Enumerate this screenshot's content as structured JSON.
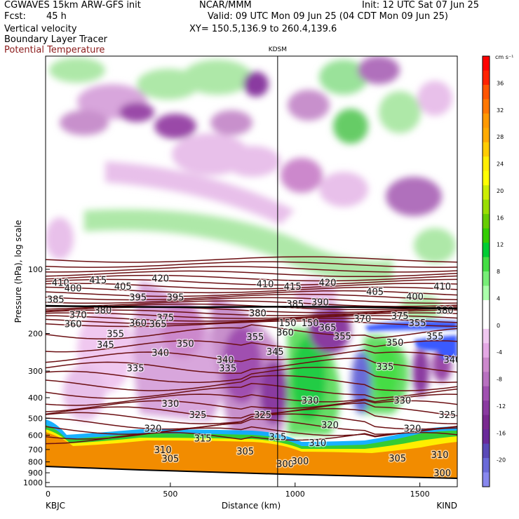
{
  "header": {
    "model": "CGWAVES 15km ARW-GFS init",
    "fcst_label": "Fcst:",
    "fcst_value": "45 h",
    "org": "NCAR/MMM",
    "init": "Init: 12 UTC Sat 07 Jun 25",
    "valid": "Valid: 09 UTC Mon 09 Jun 25 (04 CDT Mon 09 Jun 25)",
    "xy": "XY= 150.5,136.9 to 260.4,139.6",
    "field1": "Vertical velocity",
    "field2": "Boundary Layer Tracer",
    "field3": "Potential Temperature"
  },
  "colors": {
    "theta_contour": "#6b0f12",
    "terrain": "#f28c00",
    "field3_text": "#8b1a1a"
  },
  "chart_data": {
    "type": "heatmap",
    "title": "",
    "xlabel": "Distance (km)",
    "ylabel": "Pressure (hPa), log scale",
    "xlim": [
      0,
      1650
    ],
    "ylim": [
      1050,
      10
    ],
    "x_ticks": [
      0,
      500,
      1000,
      1500
    ],
    "y_ticks": [
      100,
      200,
      300,
      400,
      500,
      600,
      700,
      800,
      900,
      1000
    ],
    "y_scale": "log",
    "start_station": "KBJC",
    "end_station": "KIND",
    "marker_station": "KDSM",
    "marker_x_km": 930,
    "colorbar": {
      "units": "cm s⁻¹",
      "tick_values": [
        36,
        32,
        28,
        24,
        20,
        16,
        12,
        8,
        4,
        0,
        -4,
        -8,
        -12,
        -16,
        -20
      ],
      "colors": [
        "#ff0000",
        "#ff2200",
        "#ff5500",
        "#ff7700",
        "#ff9900",
        "#ffaa00",
        "#ffcc00",
        "#ffee00",
        "#ffff00",
        "#ccee00",
        "#99dd00",
        "#66cc00",
        "#33cc00",
        "#00cc33",
        "#44dd44",
        "#77ee77",
        "#aaffaa",
        "#ffffff",
        "#ffffff",
        "#f0c8f0",
        "#e4a8e4",
        "#cc88cc",
        "#b870c0",
        "#a050b0",
        "#8a3aa0",
        "#7a2a90",
        "#6a2a9a",
        "#5a4ab8",
        "#6a6ad8",
        "#8888ee"
      ]
    },
    "theta_labels": [
      {
        "x": 60,
        "p": 115,
        "label": "410"
      },
      {
        "x": 210,
        "p": 112,
        "label": "415"
      },
      {
        "x": 460,
        "p": 110,
        "label": "420"
      },
      {
        "x": 880,
        "p": 117,
        "label": "410"
      },
      {
        "x": 990,
        "p": 120,
        "label": "415"
      },
      {
        "x": 1130,
        "p": 115,
        "label": "420"
      },
      {
        "x": 1590,
        "p": 120,
        "label": "410"
      },
      {
        "x": 110,
        "p": 122,
        "label": "400"
      },
      {
        "x": 310,
        "p": 120,
        "label": "405"
      },
      {
        "x": 1320,
        "p": 127,
        "label": "405"
      },
      {
        "x": 1480,
        "p": 134,
        "label": "400"
      },
      {
        "x": 40,
        "p": 138,
        "label": "385"
      },
      {
        "x": 370,
        "p": 135,
        "label": "395"
      },
      {
        "x": 520,
        "p": 135,
        "label": "395"
      },
      {
        "x": 1000,
        "p": 145,
        "label": "385"
      },
      {
        "x": 1100,
        "p": 142,
        "label": "390"
      },
      {
        "x": 230,
        "p": 155,
        "label": "380"
      },
      {
        "x": 130,
        "p": 163,
        "label": "370"
      },
      {
        "x": 480,
        "p": 168,
        "label": "375"
      },
      {
        "x": 850,
        "p": 160,
        "label": "380"
      },
      {
        "x": 1270,
        "p": 170,
        "label": "370"
      },
      {
        "x": 1420,
        "p": 165,
        "label": "375"
      },
      {
        "x": 1600,
        "p": 155,
        "label": "380"
      },
      {
        "x": 110,
        "p": 180,
        "label": "360"
      },
      {
        "x": 370,
        "p": 178,
        "label": "360"
      },
      {
        "x": 450,
        "p": 180,
        "label": "365"
      },
      {
        "x": 970,
        "p": 178,
        "label": "150"
      },
      {
        "x": 1060,
        "p": 178,
        "label": "150"
      },
      {
        "x": 1130,
        "p": 187,
        "label": "365"
      },
      {
        "x": 1490,
        "p": 178,
        "label": "355"
      },
      {
        "x": 280,
        "p": 200,
        "label": "355"
      },
      {
        "x": 840,
        "p": 207,
        "label": "355"
      },
      {
        "x": 960,
        "p": 197,
        "label": "360"
      },
      {
        "x": 240,
        "p": 225,
        "label": "345"
      },
      {
        "x": 560,
        "p": 222,
        "label": "350"
      },
      {
        "x": 1400,
        "p": 220,
        "label": "350"
      },
      {
        "x": 1560,
        "p": 205,
        "label": "355"
      },
      {
        "x": 460,
        "p": 245,
        "label": "340"
      },
      {
        "x": 720,
        "p": 265,
        "label": "340"
      },
      {
        "x": 920,
        "p": 243,
        "label": "345"
      },
      {
        "x": 1630,
        "p": 265,
        "label": "340"
      },
      {
        "x": 360,
        "p": 290,
        "label": "335"
      },
      {
        "x": 730,
        "p": 290,
        "label": "335"
      },
      {
        "x": 1360,
        "p": 285,
        "label": "335"
      },
      {
        "x": 1190,
        "p": 205,
        "label": "355"
      },
      {
        "x": 500,
        "p": 425,
        "label": "330"
      },
      {
        "x": 1060,
        "p": 410,
        "label": "330"
      },
      {
        "x": 1430,
        "p": 410,
        "label": "330"
      },
      {
        "x": 610,
        "p": 480,
        "label": "325"
      },
      {
        "x": 870,
        "p": 480,
        "label": "325"
      },
      {
        "x": 1610,
        "p": 480,
        "label": "325"
      },
      {
        "x": 430,
        "p": 555,
        "label": "320"
      },
      {
        "x": 1140,
        "p": 535,
        "label": "320"
      },
      {
        "x": 1470,
        "p": 555,
        "label": "320"
      },
      {
        "x": 630,
        "p": 618,
        "label": "315"
      },
      {
        "x": 930,
        "p": 610,
        "label": "315"
      },
      {
        "x": 1090,
        "p": 650,
        "label": "310"
      },
      {
        "x": 1580,
        "p": 740,
        "label": "310"
      },
      {
        "x": 470,
        "p": 700,
        "label": "310"
      },
      {
        "x": 500,
        "p": 770,
        "label": "305"
      },
      {
        "x": 800,
        "p": 710,
        "label": "305"
      },
      {
        "x": 1410,
        "p": 768,
        "label": "305"
      },
      {
        "x": 960,
        "p": 815,
        "label": "300"
      },
      {
        "x": 1020,
        "p": 790,
        "label": "300"
      },
      {
        "x": 1590,
        "p": 900,
        "label": "300"
      }
    ]
  }
}
